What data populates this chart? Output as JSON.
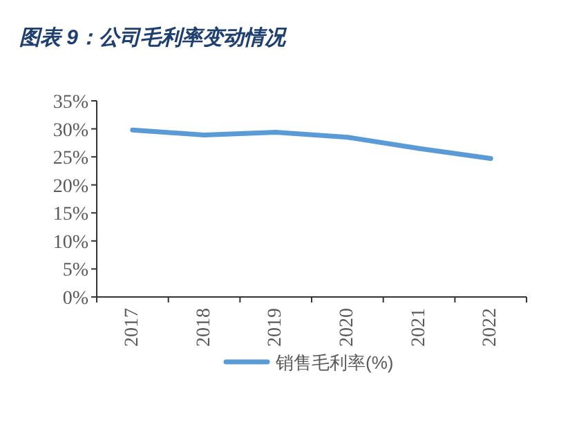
{
  "chart_data": {
    "type": "line",
    "title": "图表 9：公司毛利率变动情况",
    "categories": [
      "2017",
      "2018",
      "2019",
      "2020",
      "2021",
      "2022"
    ],
    "series": [
      {
        "name": "销售毛利率(%)",
        "color": "#5b9bd5",
        "values": [
          29.8,
          28.9,
          29.4,
          28.5,
          26.5,
          24.7
        ]
      }
    ],
    "ylim": [
      0,
      35
    ],
    "yticks": [
      {
        "value": 0,
        "label": "0%"
      },
      {
        "value": 5,
        "label": "5%"
      },
      {
        "value": 10,
        "label": "10%"
      },
      {
        "value": 15,
        "label": "15%"
      },
      {
        "value": 20,
        "label": "20%"
      },
      {
        "value": 25,
        "label": "25%"
      },
      {
        "value": 30,
        "label": "30%"
      },
      {
        "value": 35,
        "label": "35%"
      }
    ],
    "legend": "bottom",
    "grid": false,
    "marker": "none",
    "line_style": "solid"
  }
}
